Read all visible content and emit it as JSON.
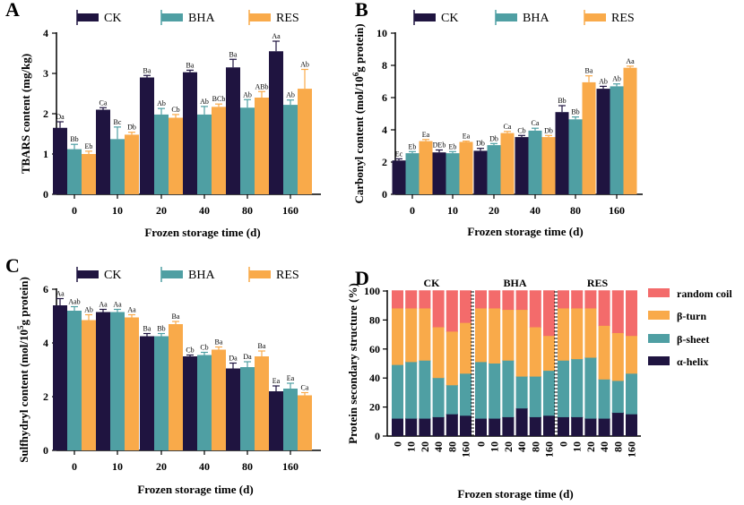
{
  "colors": {
    "CK": "#1f1440",
    "BHA": "#4f9fa3",
    "RES": "#f9aa4a",
    "random_coil": "#f36b6b",
    "beta_turn": "#f9aa4a",
    "beta_sheet": "#4f9fa3",
    "alpha_helix": "#1f1440"
  },
  "chart_data": [
    {
      "panel": "A",
      "type": "bar",
      "categories": [
        "0",
        "10",
        "20",
        "40",
        "80",
        "160"
      ],
      "series": [
        {
          "name": "CK",
          "values": [
            1.65,
            2.1,
            2.9,
            3.03,
            3.15,
            3.55
          ],
          "errors": [
            0.15,
            0.05,
            0.05,
            0.05,
            0.2,
            0.25
          ],
          "labels": [
            "Da",
            "Ca",
            "Ba",
            "Ba",
            "Ba",
            "Aa"
          ]
        },
        {
          "name": "BHA",
          "values": [
            1.12,
            1.37,
            1.98,
            1.98,
            2.15,
            2.22
          ],
          "errors": [
            0.12,
            0.3,
            0.15,
            0.2,
            0.2,
            0.12
          ],
          "labels": [
            "Bb",
            "Bc",
            "Ab",
            "Ab",
            "Ab",
            "Ab"
          ]
        },
        {
          "name": "RES",
          "values": [
            1.0,
            1.48,
            1.9,
            2.17,
            2.4,
            2.62
          ],
          "errors": [
            0.07,
            0.06,
            0.08,
            0.07,
            0.15,
            0.48
          ],
          "labels": [
            "Eb",
            "Db",
            "Cb",
            "BCb",
            "ABb",
            "Ab"
          ]
        }
      ],
      "xlabel": "Frozen storage time (d)",
      "ylabel": "TBARS content (mg/kg)",
      "ylim": [
        0,
        4
      ],
      "yticks": [
        "0",
        "1",
        "2",
        "3",
        "4"
      ],
      "legend": "top"
    },
    {
      "panel": "B",
      "type": "bar",
      "categories": [
        "0",
        "10",
        "20",
        "40",
        "80",
        "160"
      ],
      "series": [
        {
          "name": "CK",
          "values": [
            2.1,
            2.6,
            2.7,
            3.55,
            5.1,
            6.55
          ],
          "errors": [
            0.1,
            0.15,
            0.15,
            0.1,
            0.4,
            0.15
          ],
          "labels": [
            "Ec",
            "DEb",
            "Db",
            "Cb",
            "Bb",
            "Ab"
          ]
        },
        {
          "name": "BHA",
          "values": [
            2.55,
            2.55,
            3.05,
            3.95,
            4.65,
            6.7
          ],
          "errors": [
            0.1,
            0.1,
            0.1,
            0.15,
            0.15,
            0.15
          ],
          "labels": [
            "Eb",
            "Eb",
            "Db",
            "Ca",
            "Bb",
            "Ab"
          ]
        },
        {
          "name": "RES",
          "values": [
            3.3,
            3.25,
            3.8,
            3.55,
            6.95,
            7.85
          ],
          "errors": [
            0.1,
            0.05,
            0.1,
            0.1,
            0.4,
            0.1
          ],
          "labels": [
            "Ea",
            "Ea",
            "Ca",
            "Db",
            "Ba",
            "Aa"
          ]
        }
      ],
      "xlabel": "Frozen storage time (d)",
      "ylabel": "Carbonyl content (mol/10",
      "ylabel_sup": "6",
      "ylabel_tail": "g protein)",
      "ylim": [
        0,
        10
      ],
      "yticks": [
        "0",
        "2",
        "4",
        "6",
        "8",
        "10"
      ],
      "legend": "top"
    },
    {
      "panel": "C",
      "type": "bar",
      "categories": [
        "0",
        "10",
        "20",
        "40",
        "80",
        "160"
      ],
      "series": [
        {
          "name": "CK",
          "values": [
            5.4,
            5.15,
            4.25,
            3.5,
            3.05,
            2.2
          ],
          "errors": [
            0.25,
            0.1,
            0.1,
            0.05,
            0.2,
            0.2
          ],
          "labels": [
            "Aa",
            "Aa",
            "Ba",
            "Cb",
            "Da",
            "Ea"
          ]
        },
        {
          "name": "BHA",
          "values": [
            5.2,
            5.15,
            4.25,
            3.55,
            3.1,
            2.3
          ],
          "errors": [
            0.15,
            0.1,
            0.1,
            0.1,
            0.2,
            0.2
          ],
          "labels": [
            "Aab",
            "Aa",
            "Bb",
            "Cb",
            "Da",
            "Ea"
          ]
        },
        {
          "name": "RES",
          "values": [
            4.85,
            4.95,
            4.7,
            3.75,
            3.5,
            2.05
          ],
          "errors": [
            0.2,
            0.1,
            0.1,
            0.1,
            0.2,
            0.1
          ],
          "labels": [
            "Ab",
            "Aa",
            "Ba",
            "Ba",
            "Ba",
            "Ca"
          ]
        }
      ],
      "xlabel": "Frozen storage time (d)",
      "ylabel": "Sulfhydryl content (mol/10",
      "ylabel_sup": "5",
      "ylabel_tail": "g protein)",
      "ylim": [
        0,
        6
      ],
      "yticks": [
        "0",
        "2",
        "4",
        "6"
      ],
      "legend": "top"
    },
    {
      "panel": "D",
      "type": "bar",
      "subtype": "stacked-100",
      "groups": [
        "CK",
        "BHA",
        "RES"
      ],
      "categories": [
        "0",
        "10",
        "20",
        "40",
        "80",
        "160"
      ],
      "series": [
        {
          "name": "α-helix",
          "key": "alpha_helix",
          "values": [
            [
              12,
              12,
              12,
              13,
              15,
              14
            ],
            [
              12,
              12,
              13,
              19,
              13,
              14
            ],
            [
              13,
              13,
              12,
              12,
              16,
              15
            ]
          ]
        },
        {
          "name": "β-sheet",
          "key": "beta_sheet",
          "values": [
            [
              37,
              39,
              40,
              27,
              20,
              29
            ],
            [
              39,
              38,
              39,
              22,
              28,
              31
            ],
            [
              39,
              40,
              42,
              27,
              22,
              28
            ]
          ]
        },
        {
          "name": "β-turn",
          "key": "beta_turn",
          "values": [
            [
              39,
              37,
              36,
              35,
              37,
              35
            ],
            [
              37,
              38,
              35,
              46,
              34,
              24
            ],
            [
              36,
              35,
              34,
              37,
              33,
              26
            ]
          ]
        },
        {
          "name": "random coil",
          "key": "random_coil",
          "values": [
            [
              12,
              12,
              12,
              25,
              28,
              22
            ],
            [
              12,
              12,
              13,
              13,
              25,
              31
            ],
            [
              12,
              12,
              12,
              24,
              29,
              31
            ]
          ]
        }
      ],
      "xlabel": "Frozen storage time (d)",
      "ylabel": "Protein secondary structure (%)",
      "ylim": [
        0,
        100
      ],
      "yticks": [
        "0",
        "20",
        "40",
        "60",
        "80",
        "100"
      ],
      "legend": "right"
    }
  ]
}
